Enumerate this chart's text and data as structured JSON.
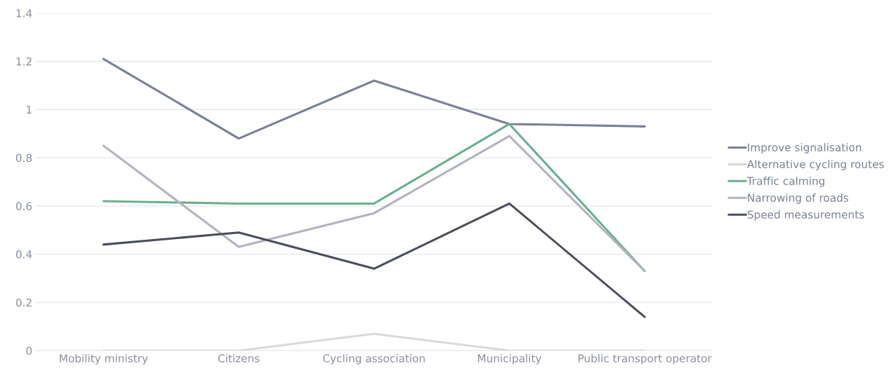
{
  "chart_data": {
    "type": "line",
    "categories": [
      "Mobility ministry",
      "Citizens",
      "Cycling association",
      "Municipality",
      "Public transport operator"
    ],
    "series": [
      {
        "name": "Improve signalisation",
        "color": "#7a8195",
        "values": [
          1.21,
          0.88,
          1.12,
          0.94,
          0.93
        ]
      },
      {
        "name": "Alternative cycling routes",
        "color": "#d9d9dc",
        "values": [
          0,
          0,
          0.07,
          0,
          0
        ]
      },
      {
        "name": "Traffic calming",
        "color": "#6aaf8f",
        "values": [
          0.62,
          0.61,
          0.61,
          0.94,
          0.33
        ]
      },
      {
        "name": "Narrowing of roads",
        "color": "#b0b3c0",
        "values": [
          0.85,
          0.43,
          0.57,
          0.89,
          0.33
        ]
      },
      {
        "name": "Speed measurements",
        "color": "#4a4e5c",
        "values": [
          0.44,
          0.49,
          0.34,
          0.61,
          0.14
        ]
      }
    ],
    "ylim": [
      0,
      1.4
    ],
    "yticks": [
      0,
      0.2,
      0.4,
      0.6,
      0.8,
      1,
      1.2,
      1.4
    ],
    "grid": "y",
    "legend": "right",
    "marker": "none",
    "line_style": "solid"
  }
}
